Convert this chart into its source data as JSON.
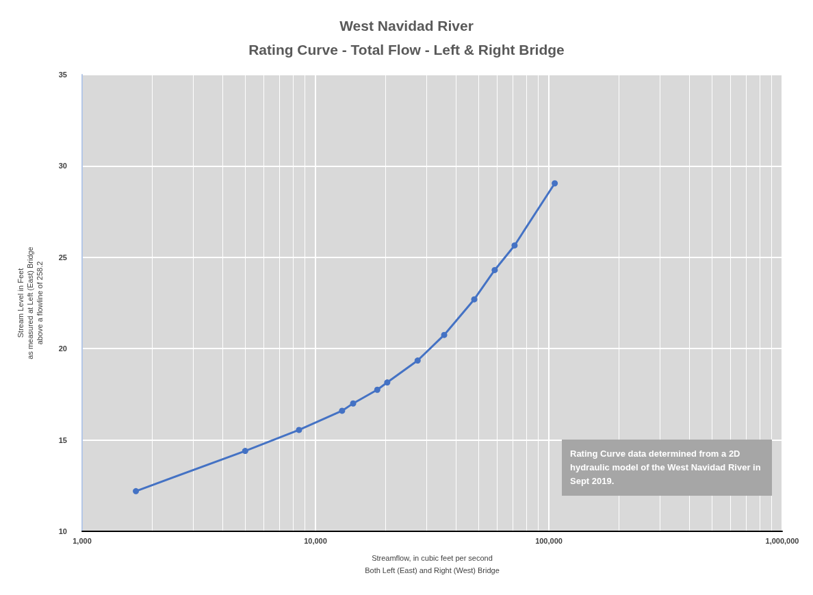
{
  "chart_data": {
    "type": "line",
    "title": "West Navidad River",
    "subtitle": "Rating Curve - Total Flow - Left & Right Bridge",
    "xlabel": "Streamflow, in cubic feet per second\nBoth Left (East) and Right (West) Bridge",
    "ylabel": "Stream Level in Feet\nas measured at Left (East) Bridge\nabove a flowline of 258.2",
    "log": "x",
    "grid": true,
    "marker": "circle",
    "line_style": "solid",
    "xlim": [
      1000,
      1000000
    ],
    "xticks": [
      {
        "value": 1000,
        "label": "1,000"
      },
      {
        "value": 10000,
        "label": "10,000"
      },
      {
        "value": 100000,
        "label": "100,000"
      },
      {
        "value": 1000000,
        "label": "1,000,000"
      }
    ],
    "ylim": [
      10,
      35
    ],
    "yticks": [
      10,
      15,
      20,
      25,
      30,
      35
    ],
    "series": [
      {
        "color": "#4472c4",
        "x": [
          1700,
          5000,
          8500,
          13000,
          14500,
          18400,
          20300,
          27400,
          35600,
          47900,
          58600,
          71300,
          106000
        ],
        "values": [
          12.2,
          14.4,
          15.55,
          16.6,
          17.0,
          17.75,
          18.15,
          19.35,
          20.75,
          22.7,
          24.3,
          25.65,
          29.05
        ]
      }
    ],
    "annotations": [
      "Rating Curve data determined from a 2D hydraulic model of the West Navidad River in Sept 2019."
    ]
  }
}
